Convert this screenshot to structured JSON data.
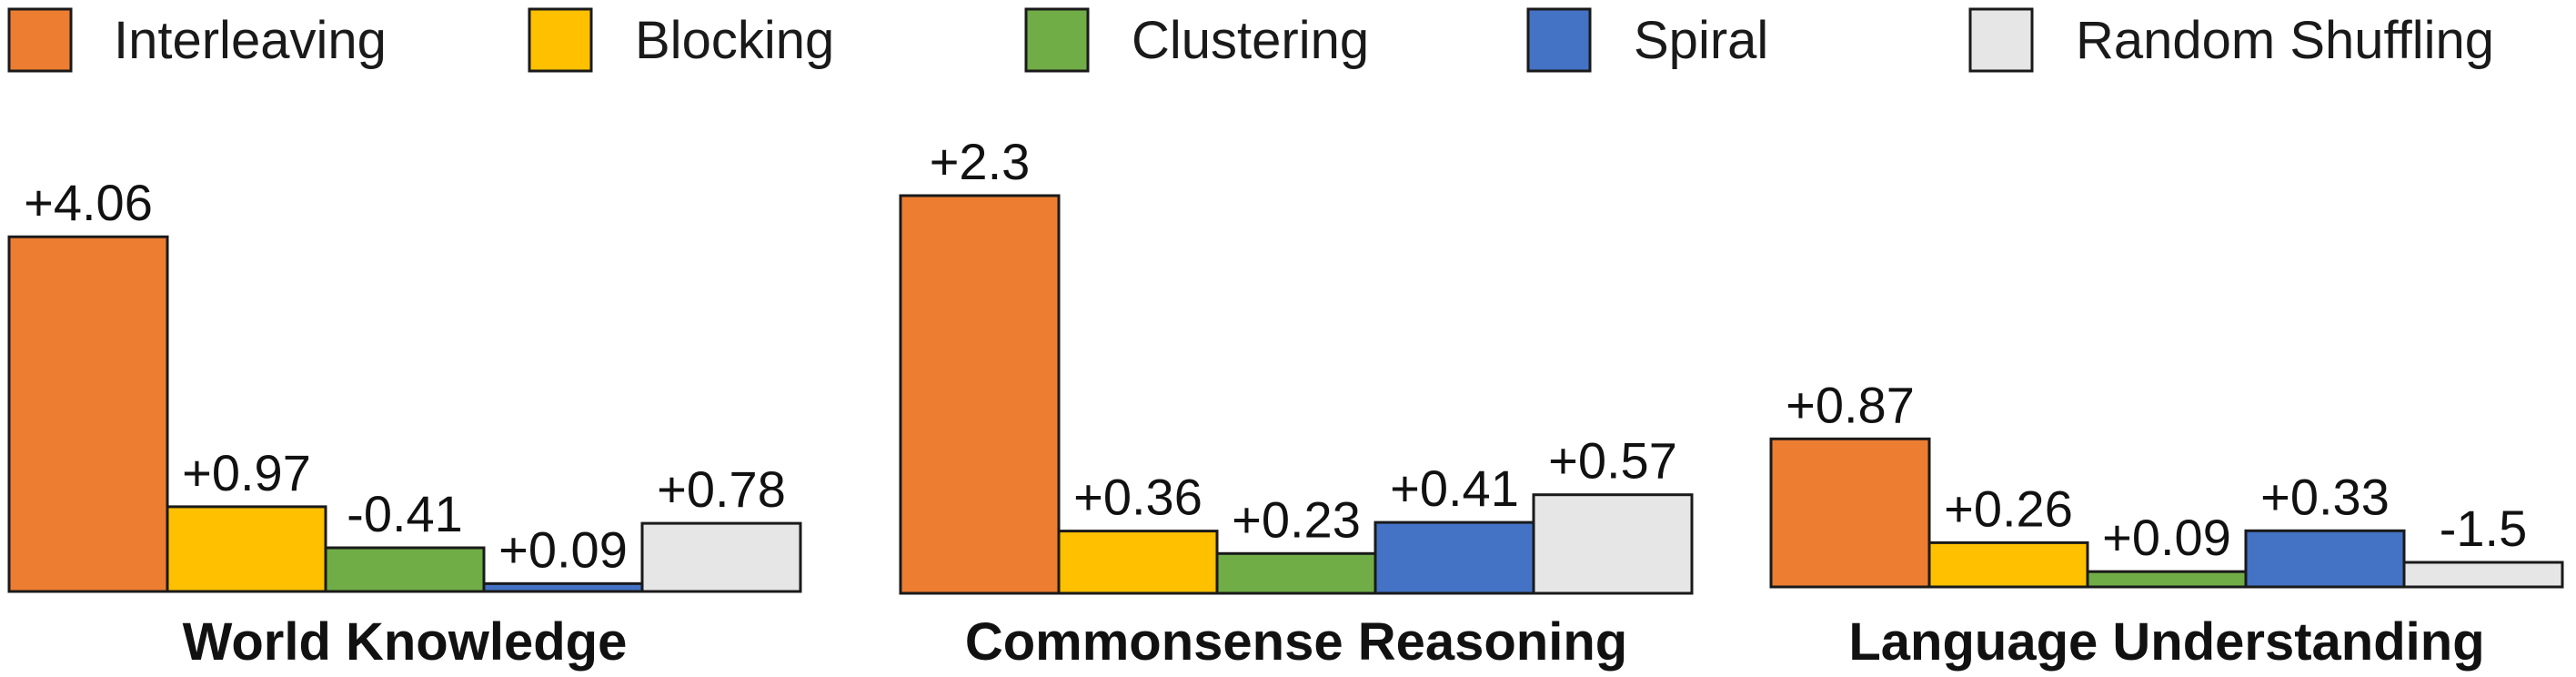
{
  "chart_data": {
    "type": "bar",
    "title": "",
    "xlabel": "",
    "ylabel": "",
    "legend_position": "top",
    "grid": false,
    "series": [
      {
        "name": "Interleaving",
        "color": "#ED7D31"
      },
      {
        "name": "Blocking",
        "color": "#FFC000"
      },
      {
        "name": "Clustering",
        "color": "#70AD47"
      },
      {
        "name": "Spiral",
        "color": "#4472C4"
      },
      {
        "name": "Random Shuffling",
        "color": "#E7E6E6"
      }
    ],
    "groups": [
      {
        "name": "World Knowledge",
        "values": [
          4.06,
          0.97,
          -0.41,
          0.09,
          0.78
        ],
        "labels": [
          "+4.06",
          "+0.97",
          "-0.41",
          "+0.09",
          "+0.78"
        ]
      },
      {
        "name": "Commonsense Reasoning",
        "values": [
          2.3,
          0.36,
          0.23,
          0.41,
          0.57
        ],
        "labels": [
          "+2.3",
          "+0.36",
          "+0.23",
          "+0.41",
          "+0.57"
        ]
      },
      {
        "name": "Language Understanding",
        "values": [
          0.87,
          0.26,
          0.09,
          0.33,
          -1.5
        ],
        "labels": [
          "+0.87",
          "+0.26",
          "+0.09",
          "+0.33",
          "-1.5"
        ]
      }
    ]
  }
}
